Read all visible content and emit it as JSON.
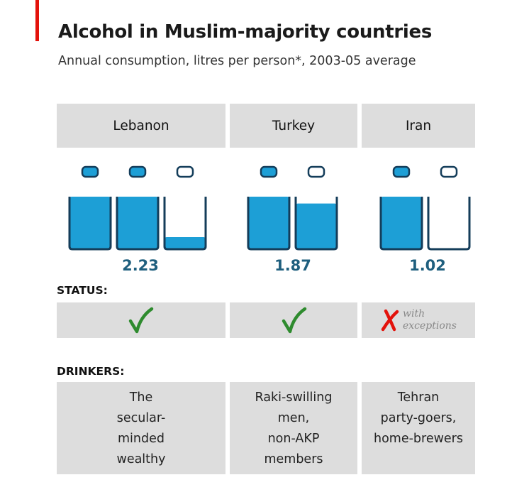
{
  "title": "Alcohol in Muslim-majority countries",
  "subtitle": "Annual consumption, litres per person*, 2003-05 average",
  "status_label": "STATUS:",
  "drinkers_label": "DRINKERS:",
  "status_exception_text": "with\nexceptions",
  "colors": {
    "accent": "#e3120b",
    "bottle_fill": "#1d9fd6",
    "bottle_outline": "#143d5a",
    "value_text": "#1f5f7e",
    "check": "#2e8b2e",
    "cross": "#e3120b",
    "panel": "#dddddd"
  },
  "chart_data": {
    "type": "bar",
    "title": "Alcohol in Muslim-majority countries",
    "subtitle": "Annual consumption, litres per person*, 2003-05 average",
    "unit": "litres per person",
    "categories": [
      "Lebanon",
      "Turkey",
      "Iran"
    ],
    "values": [
      2.23,
      1.87,
      1.02
    ],
    "value_labels": [
      "2.23",
      "1.87",
      "1.02"
    ],
    "status": [
      "legal",
      "legal",
      "illegal with exceptions"
    ],
    "drinkers": [
      "The\nsecular-\nminded\nwealthy",
      "Raki-swilling\nmen,\nnon-AKP\nmembers",
      "Tehran\nparty-goers,\nhome-brewers"
    ]
  }
}
